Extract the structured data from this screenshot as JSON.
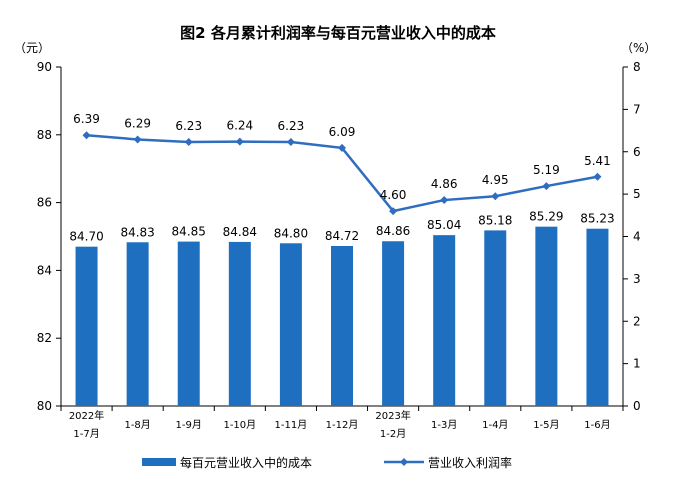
{
  "chart_data": {
    "type": "bar+line",
    "title": "图2  各月累计利润率与每百元营业收入中的成本",
    "left_unit": "（元）",
    "right_unit": "（%）",
    "categories": [
      [
        "2022年",
        "1-7月"
      ],
      [
        "1-8月"
      ],
      [
        "1-9月"
      ],
      [
        "1-10月"
      ],
      [
        "1-11月"
      ],
      [
        "1-12月"
      ],
      [
        "2023年",
        "1-2月"
      ],
      [
        "1-3月"
      ],
      [
        "1-4月"
      ],
      [
        "1-5月"
      ],
      [
        "1-6月"
      ]
    ],
    "y_left": {
      "min": 80,
      "max": 90,
      "ticks": [
        80,
        82,
        84,
        86,
        88,
        90
      ]
    },
    "y_right": {
      "min": 0,
      "max": 8,
      "ticks": [
        0,
        1,
        2,
        3,
        4,
        5,
        6,
        7,
        8
      ]
    },
    "series": [
      {
        "name": "每百元营业收入中的成本",
        "type": "bar",
        "axis": "left",
        "color": "#1F6FC0",
        "values": [
          84.7,
          84.83,
          84.85,
          84.84,
          84.8,
          84.72,
          84.86,
          85.04,
          85.18,
          85.29,
          85.23
        ],
        "labels": [
          "84.70",
          "84.83",
          "84.85",
          "84.84",
          "84.80",
          "84.72",
          "84.86",
          "85.04",
          "85.18",
          "85.29",
          "85.23"
        ]
      },
      {
        "name": "营业收入利润率",
        "type": "line",
        "axis": "right",
        "color": "#2F6DC0",
        "values": [
          6.39,
          6.29,
          6.23,
          6.24,
          6.23,
          6.09,
          4.6,
          4.86,
          4.95,
          5.19,
          5.41
        ],
        "labels": [
          "6.39",
          "6.29",
          "6.23",
          "6.24",
          "6.23",
          "6.09",
          "4.60",
          "4.86",
          "4.95",
          "5.19",
          "5.41"
        ]
      }
    ],
    "legend_position": "bottom",
    "grid": false
  }
}
